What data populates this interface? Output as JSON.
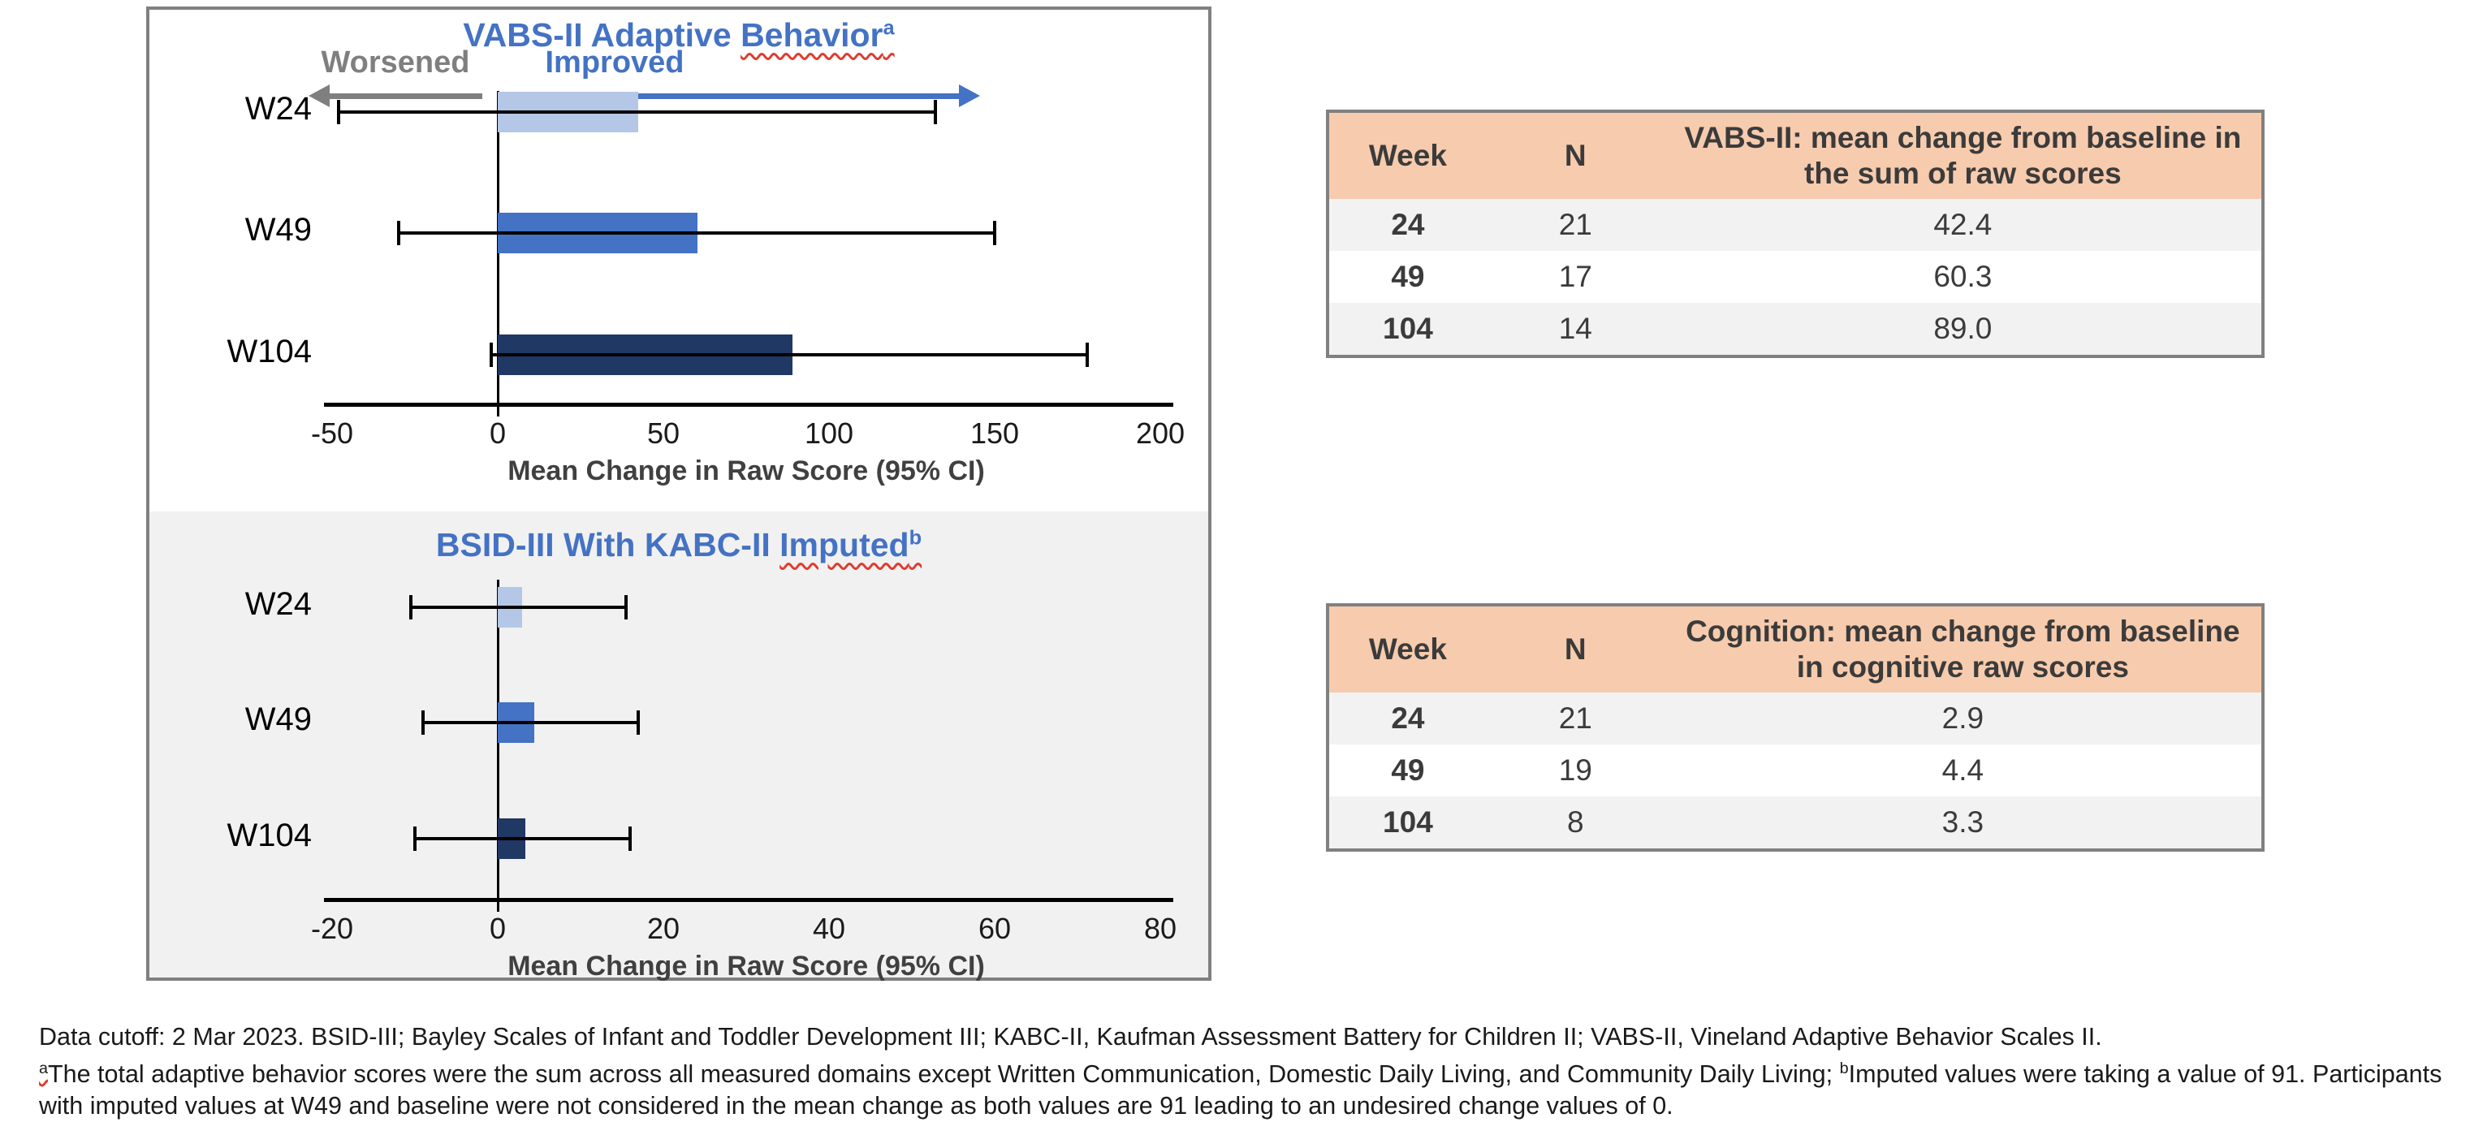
{
  "colors": {
    "accent_blue": "#4472C4",
    "light_blue_bar": "#B4C7E7",
    "medium_blue_bar": "#4472C4",
    "navy_bar": "#1F3864",
    "worsened_gray": "#7F7F7F",
    "panel_border": "#808080",
    "table_header_orange": "#F7CBAD",
    "table_alt_row": "#F2F2F2",
    "lower_chart_background": "#F1F1F1",
    "axis_title_gray": "#404040",
    "squiggle_red": "#E03C31"
  },
  "chart_data": [
    {
      "type": "bar",
      "orientation": "horizontal",
      "title": "VABS-II Adaptive Behavior",
      "title_plain": "VABS-II Adaptive ",
      "title_wavy": "Behavior",
      "title_sup": "a",
      "direction_left": "Worsened",
      "direction_right": "Improved",
      "categories": [
        "W24",
        "W49",
        "W104"
      ],
      "values": [
        42.4,
        60.3,
        89.0
      ],
      "ci": [
        [
          -48,
          132
        ],
        [
          -30,
          150
        ],
        [
          -2,
          178
        ]
      ],
      "bar_colors": [
        "#B4C7E7",
        "#4472C4",
        "#1F3864"
      ],
      "xlabel": "Mean Change in Raw Score (95% CI)",
      "xlim": [
        -50,
        200
      ],
      "xticks": [
        -50,
        0,
        50,
        100,
        150,
        200
      ],
      "grid": false,
      "legend": "none"
    },
    {
      "type": "bar",
      "orientation": "horizontal",
      "title": "BSID-III With KABC-II Imputed",
      "title_plain": "BSID-III With KABC-II ",
      "title_wavy": "Imputed",
      "title_sup": "b",
      "categories": [
        "W24",
        "W49",
        "W104"
      ],
      "values": [
        2.9,
        4.4,
        3.3
      ],
      "ci": [
        [
          -10.5,
          15.5
        ],
        [
          -9,
          17
        ],
        [
          -10,
          16
        ]
      ],
      "bar_colors": [
        "#B4C7E7",
        "#4472C4",
        "#1F3864"
      ],
      "xlabel": "Mean Change in Raw Score (95% CI)",
      "xlim": [
        -20,
        80
      ],
      "xticks": [
        -20,
        0,
        20,
        40,
        60,
        80
      ],
      "grid": false,
      "legend": "none"
    }
  ],
  "tables": [
    {
      "headers": [
        "Week",
        "N",
        "VABS-II: mean change from baseline in the sum of raw scores"
      ],
      "rows": [
        [
          "24",
          "21",
          "42.4"
        ],
        [
          "49",
          "17",
          "60.3"
        ],
        [
          "104",
          "14",
          "89.0"
        ]
      ]
    },
    {
      "headers": [
        "Week",
        "N",
        "Cognition: mean change from baseline in cognitive raw scores"
      ],
      "rows": [
        [
          "24",
          "21",
          "2.9"
        ],
        [
          "49",
          "19",
          "4.4"
        ],
        [
          "104",
          "8",
          "3.3"
        ]
      ]
    }
  ],
  "footer": {
    "line1": "Data cutoff: 2 Mar 2023. BSID-III; Bayley Scales of Infant and Toddler Development III; KABC-II, Kaufman Assessment Battery for Children II; VABS-II, Vineland Adaptive Behavior Scales II.",
    "sup_a": "a",
    "note_a": "The total adaptive behavior scores were the sum across all measured domains except Written Communication, Domestic Daily Living, and Community Daily Living; ",
    "sup_b": "b",
    "note_b": "Imputed values were taking a value of 91. Participants with imputed values at W49 and baseline were not considered in the mean change as both values are 91 leading to an undesired change values of 0."
  }
}
